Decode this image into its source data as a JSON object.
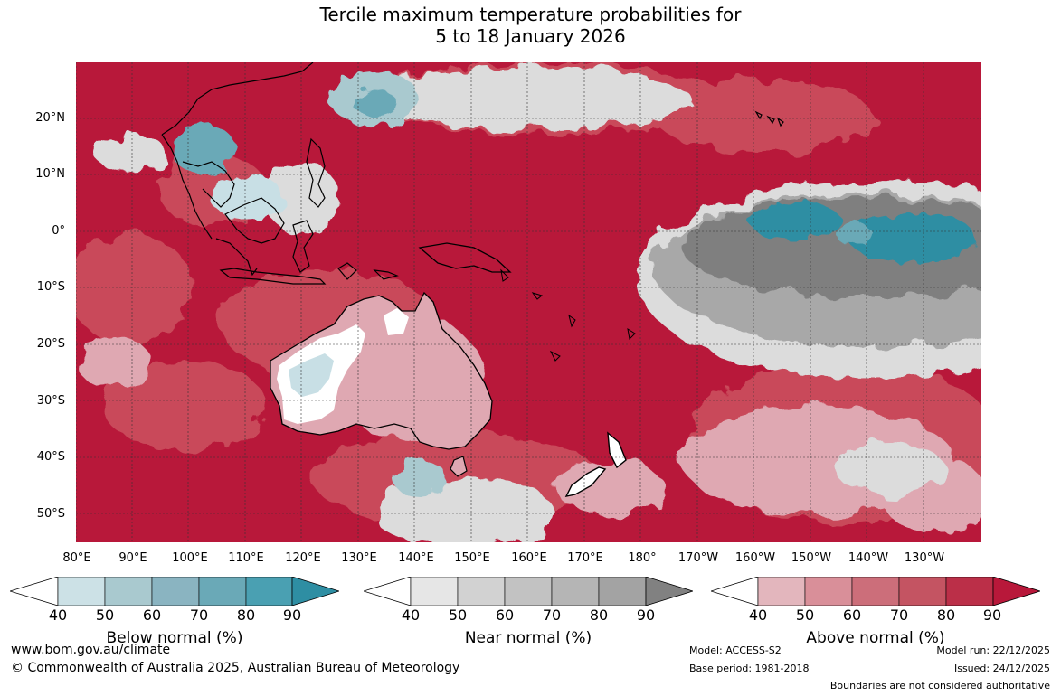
{
  "title": {
    "line1": "Tercile maximum temperature probabilities for",
    "line2": "5 to 18 January 2026"
  },
  "map": {
    "latitude_labels": [
      "20°N",
      "10°N",
      "0°",
      "10°S",
      "20°S",
      "30°S",
      "40°S",
      "50°S"
    ],
    "longitude_labels": [
      "80°E",
      "90°E",
      "100°E",
      "110°E",
      "120°E",
      "130°E",
      "140°E",
      "150°E",
      "160°E",
      "170°E",
      "180°",
      "170°W",
      "160°W",
      "150°W",
      "140°W",
      "130°W"
    ],
    "colors": {
      "above_strong": "#b8183a",
      "above_mid": "#c94a5a",
      "above_light": "#dfa8b2",
      "near_dark": "#7f7f7f",
      "near_mid": "#a8a8a8",
      "near_light": "#dcdcdc",
      "below_strong": "#2e8ea3",
      "below_light": "#c8dfe5",
      "land_outline": "#000000"
    }
  },
  "legends": [
    {
      "label": "Below normal (%)",
      "ticks": [
        "40",
        "50",
        "60",
        "70",
        "80",
        "90"
      ],
      "colors": [
        "#ffffff",
        "#cce1e6",
        "#a9c9cf",
        "#8ab4c1",
        "#6aa9b7",
        "#4aa0b2",
        "#2e8ea3"
      ]
    },
    {
      "label": "Near normal (%)",
      "ticks": [
        "40",
        "50",
        "60",
        "70",
        "80",
        "90"
      ],
      "colors": [
        "#ffffff",
        "#e6e6e6",
        "#d2d2d2",
        "#c2c2c2",
        "#b5b5b5",
        "#a3a3a3",
        "#818181"
      ]
    },
    {
      "label": "Above normal (%)",
      "ticks": [
        "40",
        "50",
        "60",
        "70",
        "80",
        "90"
      ],
      "colors": [
        "#ffffff",
        "#e3b6bd",
        "#d98f99",
        "#cc6e7a",
        "#c45462",
        "#bb2f48",
        "#b8183a"
      ]
    }
  ],
  "footer": {
    "website": "www.bom.gov.au/climate",
    "copyright": "© Commonwealth of Australia 2025, Australian Bureau of Meteorology",
    "model": "Model: ACCESS-S2",
    "base_period": "Base period: 1981-2018",
    "model_run": "Model run: 22/12/2025",
    "issued": "Issued: 24/12/2025",
    "boundaries": "Boundaries are not considered authoritative"
  }
}
